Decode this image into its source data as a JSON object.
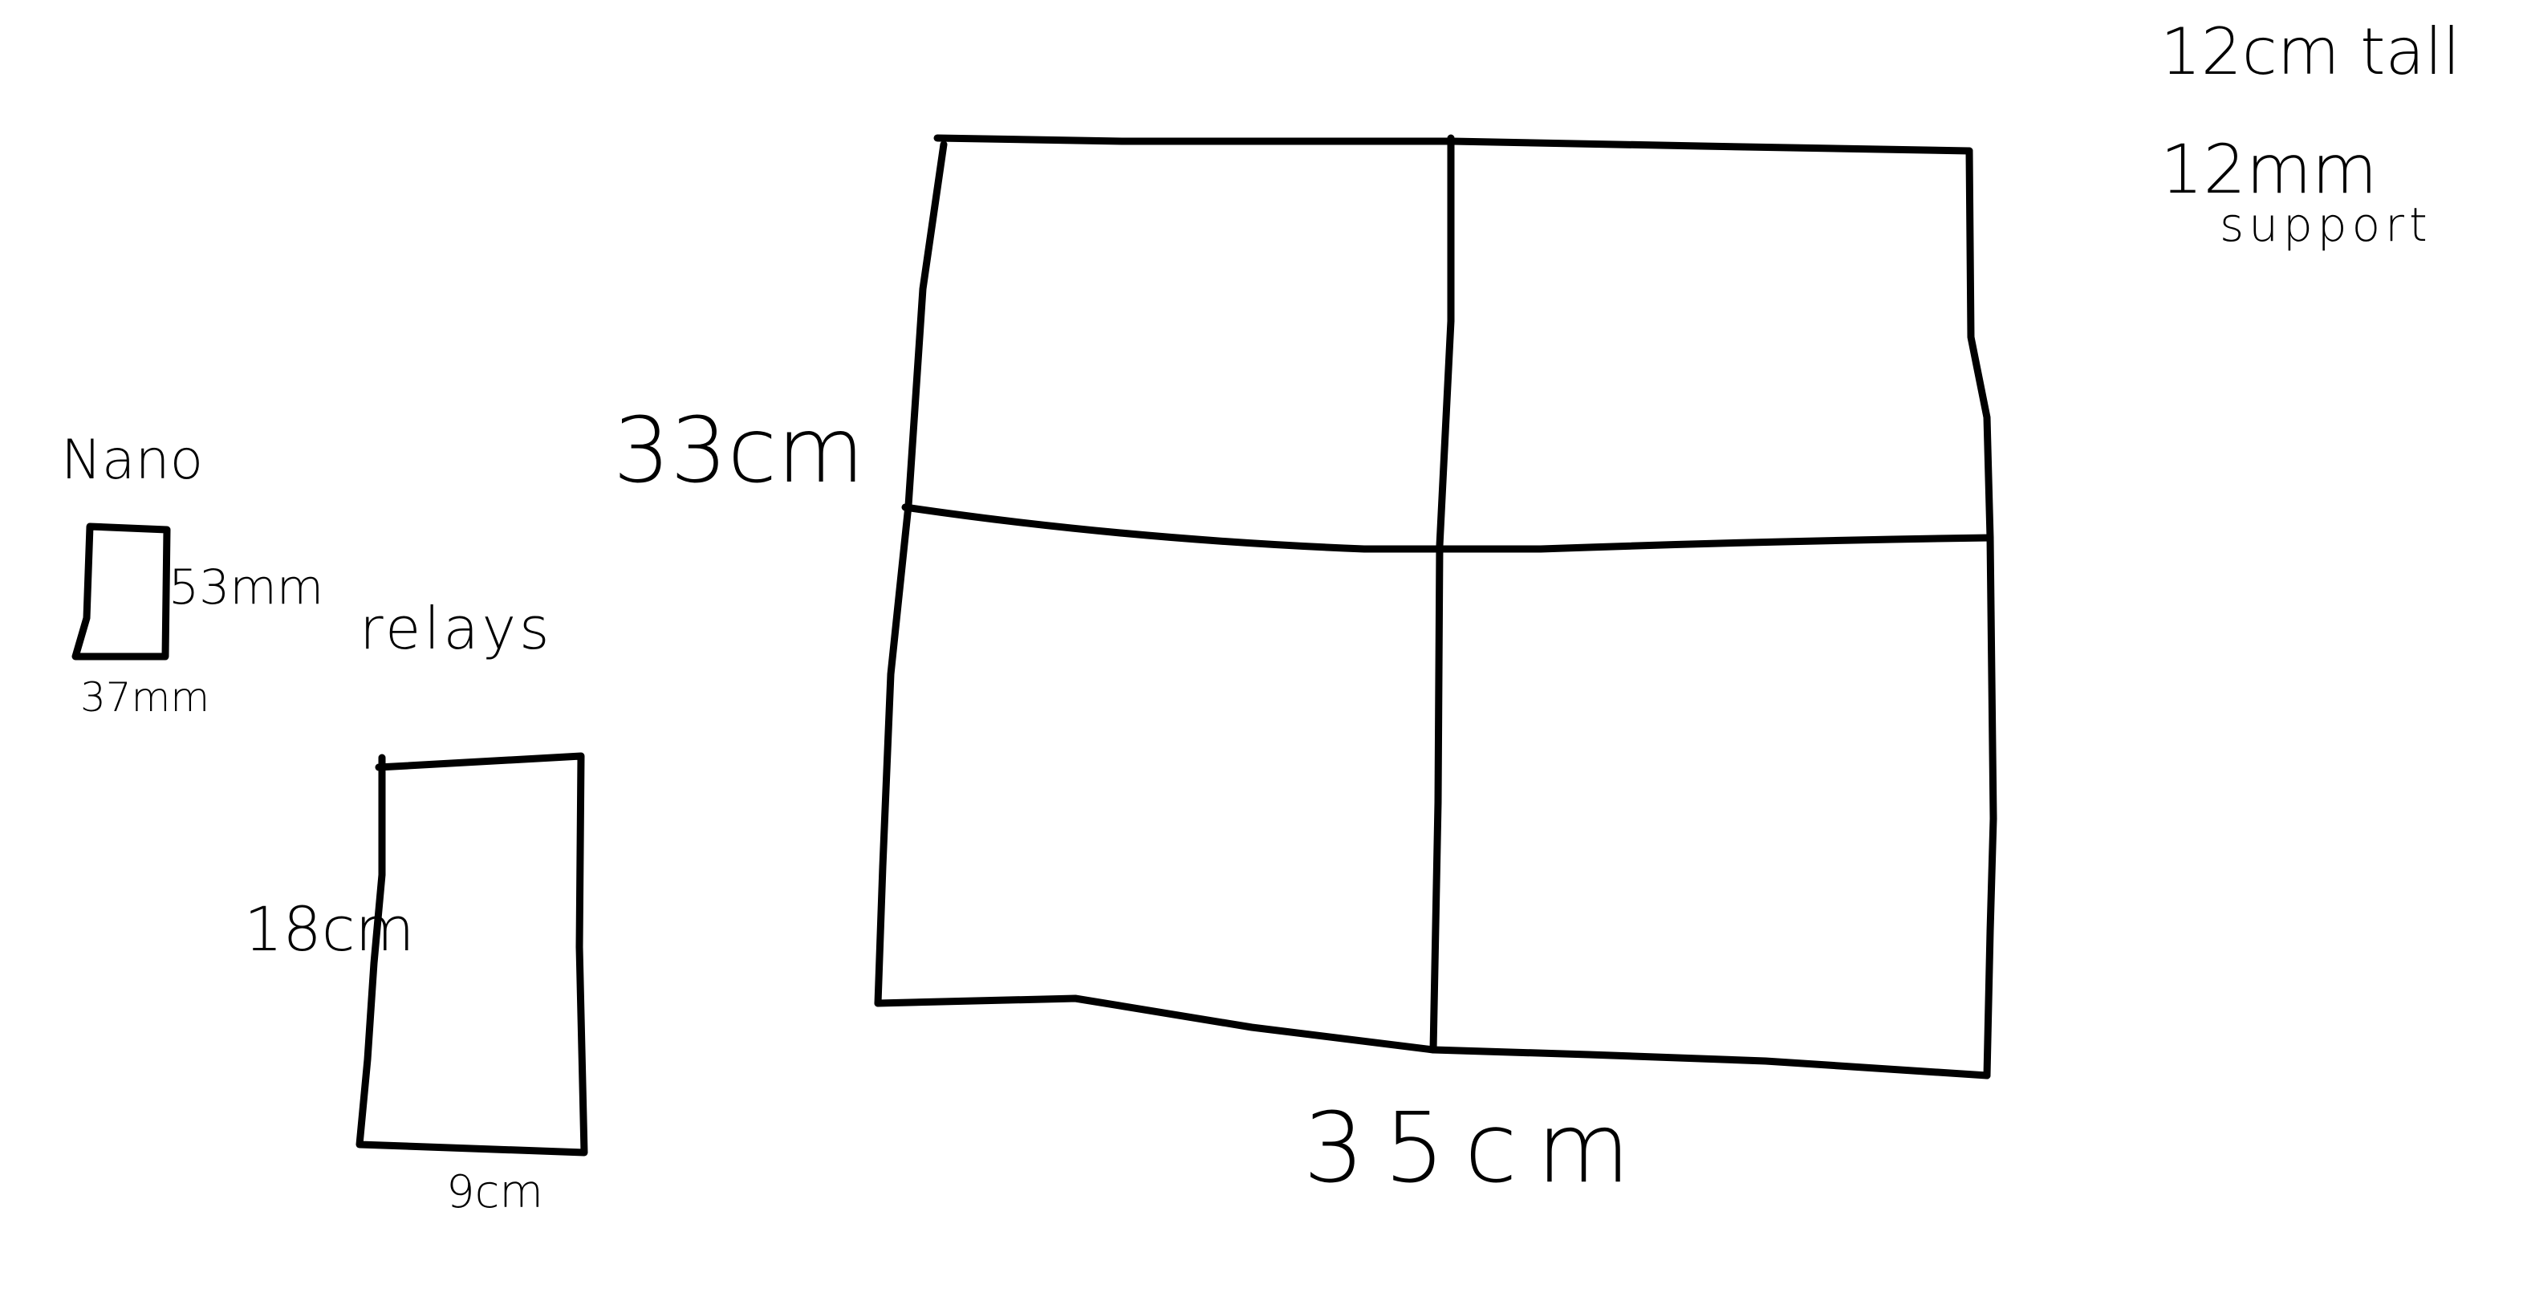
{
  "colors": {
    "background": "#ffffff",
    "ink": "#000000"
  },
  "labels": {
    "top_right_line1": "12cm tall",
    "top_right_line2": "12mm",
    "top_right_line3": "support",
    "big_height": "33cm",
    "big_width": "35cm",
    "nano_title": "Nano",
    "nano_height": "53mm",
    "nano_width": "37mm",
    "relays_title": "relays",
    "relays_height": "18cm",
    "relays_width": "9cm"
  }
}
